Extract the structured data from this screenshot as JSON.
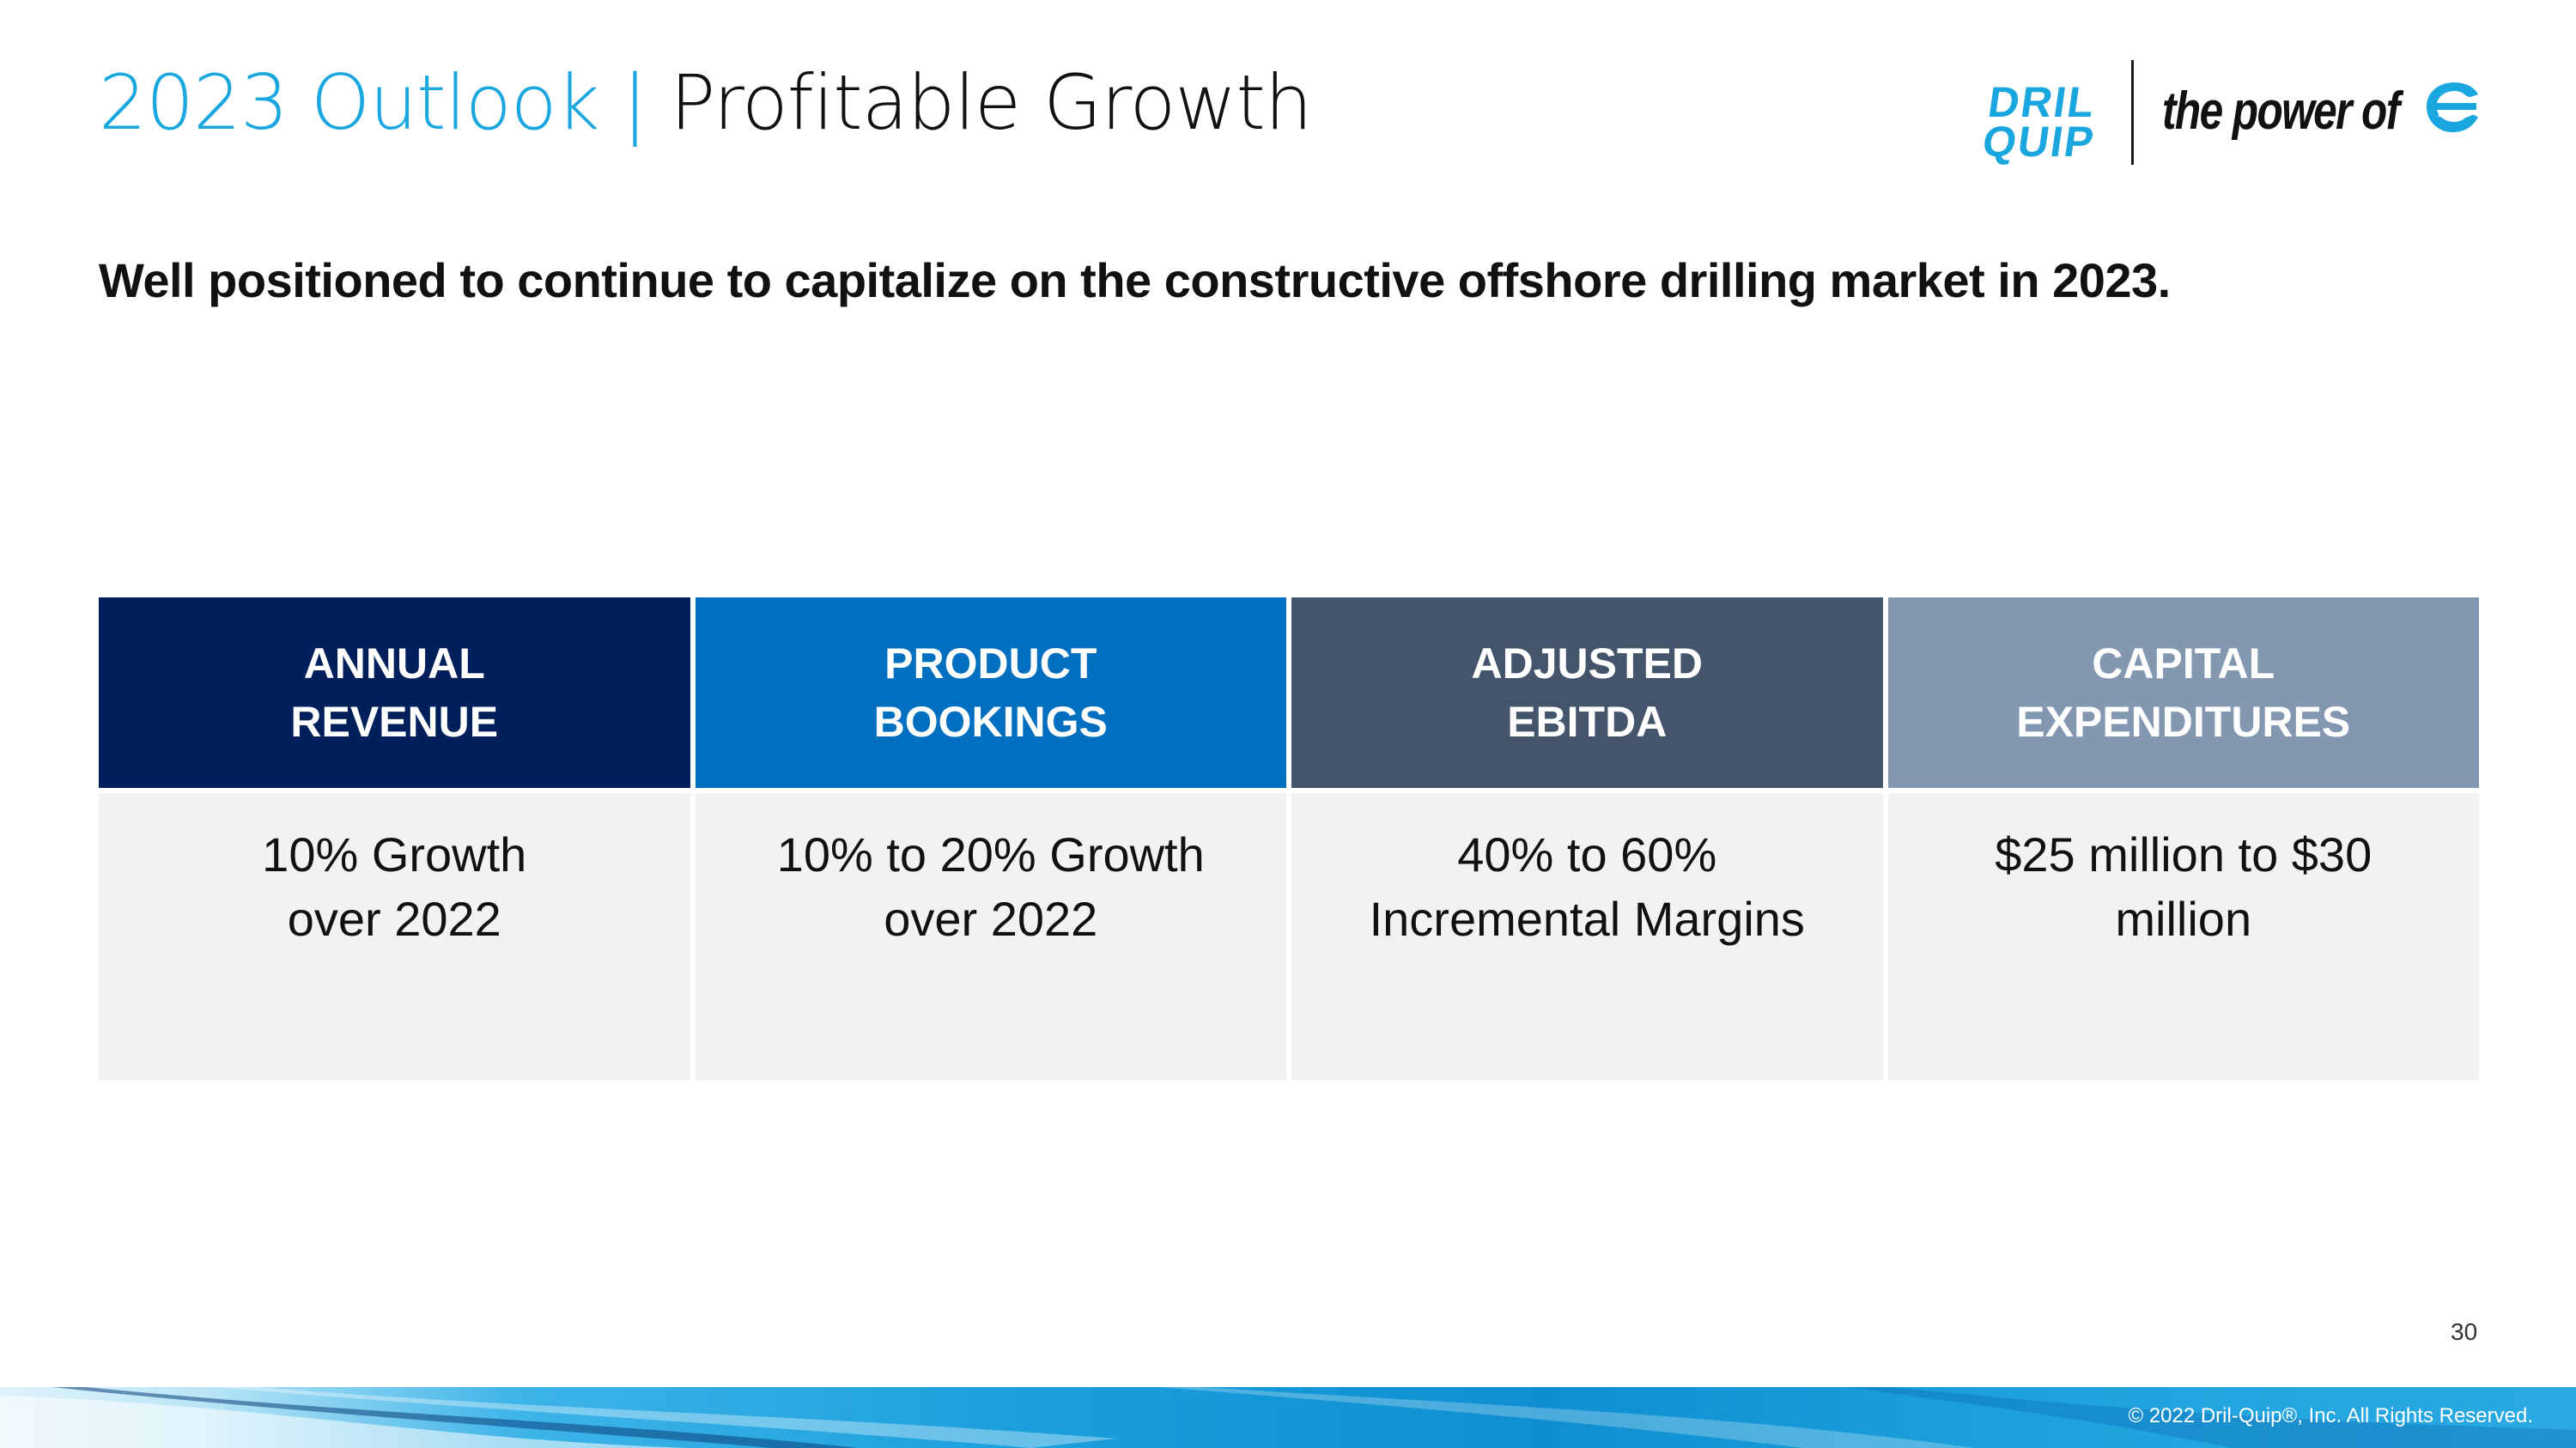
{
  "header": {
    "title_accent": "2023 Outlook",
    "title_separator": "|",
    "title_main": "Profitable Growth",
    "logo_name_line1": "DRIL",
    "logo_name_line2": "QUIP",
    "logo_tagline": "the power of"
  },
  "subtitle": "Well positioned to continue to capitalize on the constructive offshore drilling market in 2023.",
  "columns": [
    {
      "head": [
        "ANNUAL",
        "REVENUE"
      ],
      "body": [
        "10% Growth",
        "over 2022"
      ],
      "color": "#001f5b"
    },
    {
      "head": [
        "PRODUCT",
        "BOOKINGS"
      ],
      "body": [
        "10% to 20% Growth",
        "over 2022"
      ],
      "color": "#006fc0"
    },
    {
      "head": [
        "ADJUSTED",
        "EBITDA"
      ],
      "body": [
        "40% to 60%",
        "Incremental Margins"
      ],
      "color": "#44546a"
    },
    {
      "head": [
        "CAPITAL",
        "EXPENDITURES"
      ],
      "body": [
        "$25 million to $30",
        "million"
      ],
      "color": "#8497b0"
    }
  ],
  "footer": {
    "page_number": "30",
    "copyright": "© 2022 Dril-Quip®, Inc. All Rights Reserved."
  }
}
